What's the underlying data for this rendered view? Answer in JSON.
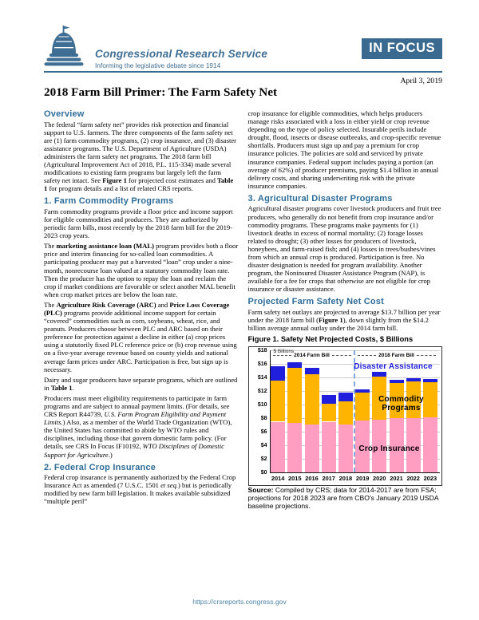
{
  "colors": {
    "brand_blue": "#3A6A8F",
    "heading_blue": "#2E6D99",
    "footer_link": "#4F83A8",
    "chart_pink": "#FF9EC0",
    "chart_orange": "#FFB400",
    "chart_blue": "#2020DC"
  },
  "header": {
    "org_name": "Congressional Research Service",
    "tagline": "Informing the legislative debate since 1914",
    "badge": "IN FOCUS",
    "date": "April 3, 2019"
  },
  "title": "2018 Farm Bill Primer: The Farm Safety Net",
  "columns": {
    "left": [
      {
        "type": "heading",
        "text": "Overview"
      },
      {
        "type": "para",
        "text": "The federal “farm safety net” provides risk protection and financial support to U.S. farmers. The three components of the farm safety net are (1) farm commodity programs, (2) crop insurance, and (3) disaster assistance programs. The U.S. Department of Agriculture (USDA) administers the farm safety net programs. The 2018 farm bill (Agricultural Improvement Act of 2018, P.L. 115-334) made several modifications to existing farm programs but largely left the farm safety net intact. See **Figure 1** for projected cost estimates and **Table 1** for program details and a list of related CRS reports."
      },
      {
        "type": "heading",
        "text": "1. Farm Commodity Programs"
      },
      {
        "type": "para",
        "text": "Farm commodity programs provide a floor price and income support for eligible commodities and producers. They are authorized by periodic farm bills, most recently by the 2018 farm bill for the 2019-2023 crop years."
      },
      {
        "type": "para",
        "text": "The **marketing assistance loan (MAL)** program provides both a floor price and interim financing for so-called loan commodities. A participating producer may put a harvested “loan” crop under a nine-month, nonrecourse loan valued at a statutory commodity loan rate. Then the producer has the option to repay the loan and reclaim the crop if market conditions are favorable or select another MAL benefit when crop market prices are below the loan rate."
      },
      {
        "type": "para",
        "text": "The **Agriculture Risk Coverage (ARC)** and **Price Loss Coverage (PLC)** programs provide additional income support for certain “covered” commodities such as corn, soybeans, wheat, rice, and peanuts. Producers choose between PLC and ARC based on their preference for protection against a decline in either (a) crop prices using a statutorily fixed PLC reference price or (b) crop revenue using on a five-year average revenue based on county yields and national average farm prices under ARC. Participation is free, but sign up is necessary."
      },
      {
        "type": "para",
        "text": "Dairy and sugar producers have separate programs, which are outlined in **Table 1**."
      },
      {
        "type": "para",
        "text": "Producers must meet eligibility requirements to participate in farm programs and are subject to annual payment limits. (For details, see CRS Report R44739, *U.S. Farm Program Eligibility and Payment Limits*.) Also, as a member of the World Trade Organization (WTO), the United States has committed to abide by WTO rules and disciplines, including those that govern domestic farm policy. (For details, see CRS In Focus IF10192, *WTO Disciplines of Domestic Support for Agriculture*.)"
      },
      {
        "type": "heading",
        "text": "2. Federal Crop Insurance"
      },
      {
        "type": "para",
        "text": "Federal crop insurance is permanently authorized by the Federal Crop Insurance Act as amended (7 U.S.C. 1501 *et seq.*) but is periodically modified by new farm bill legislation. It makes available subsidized “multiple peril”"
      }
    ],
    "right": [
      {
        "type": "para",
        "text": "crop insurance for eligible commodities, which helps producers manage risks associated with a loss in either yield or crop revenue depending on the type of policy selected. Insurable perils include drought, flood, insects or disease outbreaks, and crop-specific revenue shortfalls. Producers must sign up and pay a premium for crop insurance policies. The policies are sold and serviced by private insurance companies. Federal support includes paying a portion (an average of 62%) of producer premiums, paying $1.4 billion in annual delivery costs, and sharing underwriting risk with the private insurance companies."
      },
      {
        "type": "heading",
        "text": "3. Agricultural Disaster Programs"
      },
      {
        "type": "para",
        "text": "Agricultural disaster programs cover livestock producers and fruit tree producers, who generally do not benefit from crop insurance and/or commodity programs. These programs make payments for (1) livestock deaths in excess of normal mortality; (2) forage losses related to drought; (3) other losses for producers of livestock, honeybees, and farm-raised fish; and (4) losses in trees/bushes/vines from which an annual crop is produced. Participation is free. No disaster designation is needed for program availability. Another program, the Noninsured Disaster Assistance Program (NAP), is available for a fee for crops that otherwise are not eligible for crop insurance or disaster assistance."
      },
      {
        "type": "heading",
        "text": "Projected Farm Safety Net Cost"
      },
      {
        "type": "para",
        "text": "Farm safety net outlays are projected to average $13.7 billion per year under the 2018 farm bill (**Figure 1**), down slightly from the $14.2 billion average annual outlay under the 2014 farm bill."
      }
    ]
  },
  "figure": {
    "title": "Figure 1. Safety Net Projected Costs, $ Billions",
    "source": "**Source:** Compiled by CRS; data for 2014-2017 are from FSA; projections for 2018 2023 are from CBO's January 2019 USDA baseline projections."
  },
  "chart_data": {
    "type": "bar",
    "stacked": true,
    "title": "Figure 1. Safety Net Projected Costs, $ Billions",
    "ylabel": "$ Billions",
    "ylim": [
      0,
      18
    ],
    "ytick_step": 2,
    "ytick_prefix": "$",
    "grid": "horizontal",
    "categories": [
      "2014",
      "2015",
      "2016",
      "2017",
      "2018",
      "2019",
      "2020",
      "2021",
      "2022",
      "2023"
    ],
    "series": [
      {
        "name": "Crop Insurance",
        "color": "#FF9EC0",
        "values": [
          7.5,
          7.3,
          7.1,
          7.5,
          7.1,
          7.7,
          7.8,
          8.0,
          8.0,
          8.1
        ]
      },
      {
        "name": "Commodity Programs",
        "color": "#FFB400",
        "values": [
          6.1,
          8.1,
          7.4,
          2.7,
          3.4,
          4.1,
          6.3,
          5.2,
          5.4,
          5.2
        ]
      },
      {
        "name": "Disaster Assistance",
        "color": "#2020DC",
        "values": [
          2.1,
          0.9,
          0.9,
          1.3,
          1.3,
          0.5,
          0.7,
          0.5,
          0.5,
          0.5
        ]
      }
    ],
    "era_labels": [
      {
        "text": "2014 Farm Bill",
        "span": [
          0,
          4
        ]
      },
      {
        "text": "2018 Farm Bill",
        "span": [
          5,
          9
        ]
      }
    ],
    "separator_after_index": 4,
    "inline_labels": [
      {
        "text": "Disaster Assistance",
        "color": "#2020DC"
      },
      {
        "text": "Commodity\nPrograms",
        "color": "#000000"
      },
      {
        "text": "Crop Insurance",
        "color": "#000000"
      }
    ],
    "legend_position": "labels-inside-plot"
  },
  "footer": {
    "url": "https://crsreports.congress.gov"
  }
}
